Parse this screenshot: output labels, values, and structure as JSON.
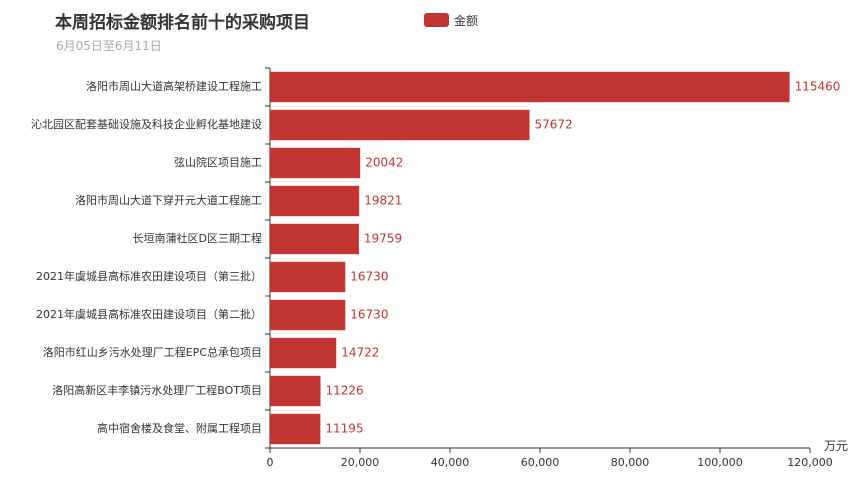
{
  "header": {
    "title": "本周招标金额排名前十的采购项目",
    "subtitle": "6月05日至6月11日"
  },
  "legend": {
    "label": "金额",
    "color": "#c23531"
  },
  "chart_data": {
    "type": "bar",
    "orientation": "horizontal",
    "title": "本周招标金额排名前十的采购项目",
    "subtitle": "6月05日至6月11日",
    "xlabel": "万元",
    "ylabel": "",
    "xlim": [
      0,
      120000
    ],
    "xticks": [
      "0",
      "20,000",
      "40,000",
      "60,000",
      "80,000",
      "100,000",
      "120,000"
    ],
    "legend_position": "top-center",
    "grid": false,
    "bar_color": "#c23531",
    "categories": [
      "洛阳市周山大道高架桥建设工程施工",
      "沁北园区配套基础设施及科技企业孵化基地建设",
      "弦山院区项目施工",
      "洛阳市周山大道下穿开元大道工程施工",
      "长垣南蒲社区D区三期工程",
      "2021年虞城县高标准农田建设项目（第三批）",
      "2021年虞城县高标准农田建设项目（第二批）",
      "洛阳市红山乡污水处理厂工程EPC总承包项目",
      "洛阳高新区丰李镇污水处理厂工程BOT项目",
      "高中宿舍楼及食堂、附属工程项目"
    ],
    "series": [
      {
        "name": "金额",
        "values": [
          115460,
          57672,
          20042,
          19821,
          19759,
          16730,
          16730,
          14722,
          11226,
          11195
        ]
      }
    ]
  }
}
